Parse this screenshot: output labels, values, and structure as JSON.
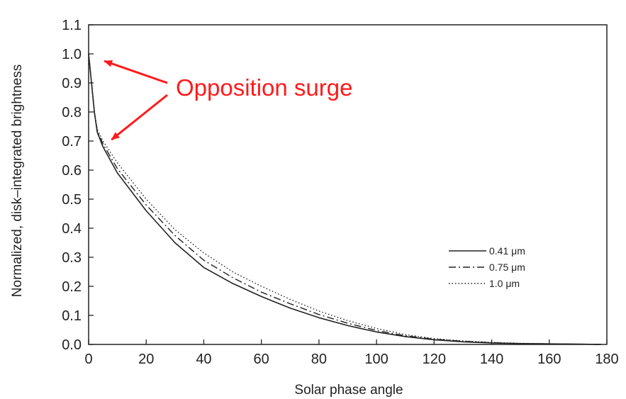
{
  "chart_data": {
    "type": "line",
    "title": "",
    "xlabel": "Solar phase angle",
    "ylabel": "Normalized, disk–integrated brightness",
    "xlim": [
      0,
      180
    ],
    "ylim": [
      0,
      1.1
    ],
    "xticks": [
      0,
      20,
      40,
      60,
      80,
      100,
      120,
      140,
      160,
      180
    ],
    "yticks": [
      "0.0",
      "0.1",
      "0.2",
      "0.3",
      "0.4",
      "0.5",
      "0.6",
      "0.7",
      "0.8",
      "0.9",
      "1.0",
      "1.1"
    ],
    "grid": false,
    "legend_position": "center-right",
    "series": [
      {
        "name": "0.41 μm",
        "style": "solid",
        "x": [
          0,
          1,
          2,
          3,
          5,
          10,
          20,
          30,
          40,
          50,
          60,
          70,
          80,
          90,
          100,
          110,
          120,
          130,
          140,
          150,
          160,
          170,
          178
        ],
        "y": [
          1.0,
          0.9,
          0.8,
          0.73,
          0.68,
          0.59,
          0.46,
          0.35,
          0.265,
          0.21,
          0.165,
          0.125,
          0.092,
          0.065,
          0.043,
          0.027,
          0.016,
          0.009,
          0.005,
          0.003,
          0.002,
          0.001,
          0.0
        ]
      },
      {
        "name": "0.75 μm",
        "style": "dash-dot",
        "x": [
          0,
          1,
          2,
          3,
          5,
          10,
          20,
          30,
          40,
          50,
          60,
          70,
          80,
          90,
          100,
          110,
          120,
          130,
          140,
          150,
          160,
          170,
          178
        ],
        "y": [
          1.0,
          0.9,
          0.8,
          0.735,
          0.69,
          0.605,
          0.48,
          0.375,
          0.29,
          0.23,
          0.18,
          0.14,
          0.103,
          0.073,
          0.048,
          0.03,
          0.018,
          0.011,
          0.006,
          0.003,
          0.002,
          0.001,
          0.0
        ]
      },
      {
        "name": "1.0  μm",
        "style": "dotted",
        "x": [
          0,
          1,
          2,
          3,
          5,
          10,
          20,
          30,
          40,
          50,
          60,
          70,
          80,
          90,
          100,
          110,
          120,
          130,
          140,
          150,
          160,
          170,
          178
        ],
        "y": [
          1.0,
          0.9,
          0.8,
          0.74,
          0.7,
          0.625,
          0.5,
          0.395,
          0.315,
          0.25,
          0.2,
          0.155,
          0.115,
          0.082,
          0.055,
          0.034,
          0.02,
          0.012,
          0.007,
          0.004,
          0.002,
          0.001,
          0.0
        ]
      }
    ],
    "annotations": [
      {
        "text": "Opposition surge",
        "color": "#ff1a1a",
        "arrows_to": [
          [
            2,
            0.99
          ],
          [
            5,
            0.69
          ]
        ]
      }
    ]
  }
}
